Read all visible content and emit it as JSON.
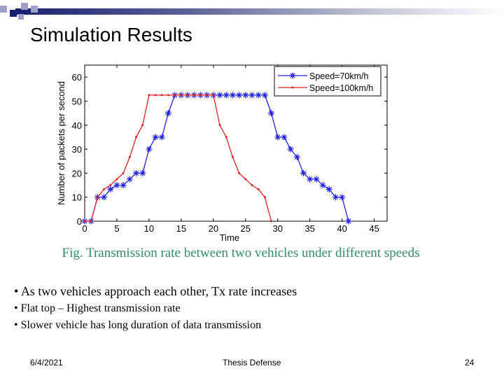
{
  "slide": {
    "title": "Simulation Results",
    "caption": "Fig. Transmission rate between two vehicles under different speeds",
    "bullets": [
      "As two vehicles approach each other, Tx rate increases",
      "Flat top – Highest transmission rate",
      "Slower vehicle has long duration of data transmission"
    ],
    "footer": {
      "date": "6/4/2021",
      "center": "Thesis Defense",
      "page": "24"
    }
  },
  "chart_data": {
    "type": "line",
    "title": "",
    "xlabel": "Time",
    "ylabel": "Number of packets per second",
    "xlim": [
      0,
      47
    ],
    "ylim": [
      0,
      65
    ],
    "xticks": [
      0,
      5,
      10,
      15,
      20,
      25,
      30,
      35,
      40,
      45
    ],
    "yticks": [
      0,
      10,
      20,
      30,
      40,
      50,
      60
    ],
    "grid": false,
    "legend": "top-right",
    "series": [
      {
        "name": "Speed=70km/h",
        "color": "#2020e0",
        "marker": "asterisk",
        "x": [
          0,
          1,
          2,
          3,
          4,
          5,
          6,
          7,
          8,
          9,
          10,
          11,
          12,
          13,
          14,
          15,
          16,
          17,
          18,
          19,
          20,
          21,
          22,
          23,
          24,
          25,
          26,
          27,
          28,
          29,
          30,
          31,
          32,
          33,
          34,
          35,
          36,
          37,
          38,
          39,
          40,
          41
        ],
        "y": [
          0,
          0,
          10,
          10,
          13.3,
          15,
          15,
          17.5,
          20,
          20,
          30,
          35,
          35,
          45,
          52.5,
          52.5,
          52.5,
          52.5,
          52.5,
          52.5,
          52.5,
          52.5,
          52.5,
          52.5,
          52.5,
          52.5,
          52.5,
          52.5,
          52.5,
          45,
          35,
          35,
          30,
          26.7,
          20,
          17.5,
          17.5,
          15,
          13.3,
          10,
          10,
          0
        ]
      },
      {
        "name": "Speed=100km/h",
        "color": "#e02020",
        "marker": "dot",
        "x": [
          0,
          1,
          2,
          3,
          4,
          5,
          6,
          7,
          8,
          9,
          10,
          11,
          12,
          13,
          14,
          15,
          16,
          17,
          18,
          19,
          20,
          21,
          22,
          23,
          24,
          25,
          26,
          27,
          28,
          29
        ],
        "y": [
          0,
          0,
          10,
          13.3,
          15,
          17.5,
          20,
          26.7,
          35,
          40,
          52.5,
          52.5,
          52.5,
          52.5,
          52.5,
          52.5,
          52.5,
          52.5,
          52.5,
          52.5,
          52.5,
          40,
          35,
          26.7,
          20,
          17.5,
          15,
          13.3,
          10,
          0
        ]
      }
    ]
  }
}
